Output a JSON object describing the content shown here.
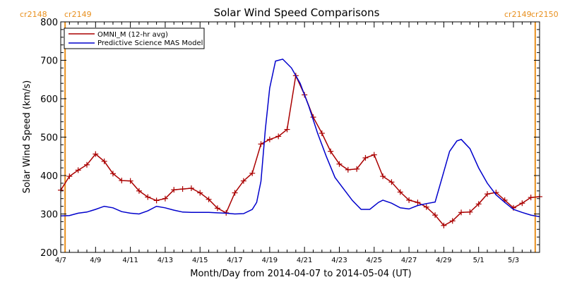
{
  "chart_data": {
    "type": "line",
    "title": "Solar Wind Speed Comparisons",
    "xlabel": "Month/Day from 2014-04-07 to 2014-05-04 (UT)",
    "ylabel": "Solar Wind Speed (km/s)",
    "xlim": [
      "2014-04-07",
      "2014-05-04T12:00"
    ],
    "ylim": [
      200,
      800
    ],
    "x_ticks": [
      "4/7",
      "4/9",
      "4/11",
      "4/13",
      "4/15",
      "4/17",
      "4/19",
      "4/21",
      "4/23",
      "4/25",
      "4/27",
      "4/29",
      "5/1",
      "5/3"
    ],
    "y_ticks": [
      200,
      300,
      400,
      500,
      600,
      700,
      800
    ],
    "legend_position": "top-left",
    "series": [
      {
        "name": "OMNI_M (12-hr avg)",
        "color": "#aa0000",
        "marker": "plus",
        "points": [
          [
            "2014-04-07T00:00",
            362
          ],
          [
            "2014-04-07T12:00",
            398
          ],
          [
            "2014-04-08T00:00",
            414
          ],
          [
            "2014-04-08T12:00",
            428
          ],
          [
            "2014-04-09T00:00",
            456
          ],
          [
            "2014-04-09T12:00",
            437
          ],
          [
            "2014-04-10T00:00",
            405
          ],
          [
            "2014-04-10T12:00",
            387
          ],
          [
            "2014-04-11T00:00",
            386
          ],
          [
            "2014-04-11T12:00",
            360
          ],
          [
            "2014-04-12T00:00",
            344
          ],
          [
            "2014-04-12T12:00",
            335
          ],
          [
            "2014-04-13T00:00",
            340
          ],
          [
            "2014-04-13T12:00",
            363
          ],
          [
            "2014-04-14T00:00",
            365
          ],
          [
            "2014-04-14T12:00",
            367
          ],
          [
            "2014-04-15T00:00",
            355
          ],
          [
            "2014-04-15T12:00",
            338
          ],
          [
            "2014-04-16T00:00",
            315
          ],
          [
            "2014-04-16T12:00",
            303
          ],
          [
            "2014-04-17T00:00",
            355
          ],
          [
            "2014-04-17T12:00",
            386
          ],
          [
            "2014-04-18T00:00",
            406
          ],
          [
            "2014-04-18T12:00",
            482
          ],
          [
            "2014-04-19T00:00",
            494
          ],
          [
            "2014-04-19T12:00",
            502
          ],
          [
            "2014-04-20T00:00",
            520
          ],
          [
            "2014-04-20T12:00",
            660
          ],
          [
            "2014-04-21T00:00",
            610
          ],
          [
            "2014-04-21T12:00",
            552
          ],
          [
            "2014-04-22T00:00",
            510
          ],
          [
            "2014-04-22T12:00",
            463
          ],
          [
            "2014-04-23T00:00",
            430
          ],
          [
            "2014-04-23T12:00",
            415
          ],
          [
            "2014-04-24T00:00",
            417
          ],
          [
            "2014-04-24T12:00",
            446
          ],
          [
            "2014-04-25T00:00",
            454
          ],
          [
            "2014-04-25T12:00",
            398
          ],
          [
            "2014-04-26T00:00",
            383
          ],
          [
            "2014-04-26T12:00",
            357
          ],
          [
            "2014-04-27T00:00",
            336
          ],
          [
            "2014-04-27T12:00",
            330
          ],
          [
            "2014-04-28T00:00",
            318
          ],
          [
            "2014-04-28T12:00",
            297
          ],
          [
            "2014-04-29T00:00",
            270
          ],
          [
            "2014-04-29T12:00",
            282
          ],
          [
            "2014-04-30T00:00",
            304
          ],
          [
            "2014-04-30T12:00",
            305
          ],
          [
            "2014-05-01T00:00",
            326
          ],
          [
            "2014-05-01T12:00",
            352
          ],
          [
            "2014-05-02T00:00",
            356
          ],
          [
            "2014-05-02T12:00",
            336
          ],
          [
            "2014-05-03T00:00",
            316
          ],
          [
            "2014-05-03T12:00",
            328
          ],
          [
            "2014-05-04T00:00",
            343
          ],
          [
            "2014-05-04T12:00",
            345
          ]
        ]
      },
      {
        "name": "Predictive Science MAS Model",
        "color": "#0000cc",
        "marker": "none",
        "points": [
          [
            "2014-04-07T00:00",
            295
          ],
          [
            "2014-04-07T12:00",
            296
          ],
          [
            "2014-04-08T00:00",
            302
          ],
          [
            "2014-04-08T12:00",
            305
          ],
          [
            "2014-04-09T00:00",
            312
          ],
          [
            "2014-04-09T12:00",
            320
          ],
          [
            "2014-04-10T00:00",
            316
          ],
          [
            "2014-04-10T12:00",
            306
          ],
          [
            "2014-04-11T00:00",
            302
          ],
          [
            "2014-04-11T12:00",
            300
          ],
          [
            "2014-04-12T00:00",
            308
          ],
          [
            "2014-04-12T12:00",
            320
          ],
          [
            "2014-04-13T00:00",
            316
          ],
          [
            "2014-04-13T12:00",
            310
          ],
          [
            "2014-04-14T00:00",
            305
          ],
          [
            "2014-04-14T12:00",
            304
          ],
          [
            "2014-04-15T00:00",
            304
          ],
          [
            "2014-04-15T12:00",
            304
          ],
          [
            "2014-04-16T00:00",
            303
          ],
          [
            "2014-04-16T12:00",
            302
          ],
          [
            "2014-04-17T00:00",
            300
          ],
          [
            "2014-04-17T12:00",
            301
          ],
          [
            "2014-04-18T00:00",
            312
          ],
          [
            "2014-04-18T06:00",
            330
          ],
          [
            "2014-04-18T12:00",
            385
          ],
          [
            "2014-04-18T18:00",
            520
          ],
          [
            "2014-04-19T00:00",
            628
          ],
          [
            "2014-04-19T08:00",
            698
          ],
          [
            "2014-04-19T18:00",
            703
          ],
          [
            "2014-04-20T06:00",
            680
          ],
          [
            "2014-04-20T18:00",
            640
          ],
          [
            "2014-04-21T06:00",
            580
          ],
          [
            "2014-04-21T18:00",
            510
          ],
          [
            "2014-04-22T06:00",
            450
          ],
          [
            "2014-04-22T18:00",
            395
          ],
          [
            "2014-04-23T06:00",
            365
          ],
          [
            "2014-04-23T18:00",
            335
          ],
          [
            "2014-04-24T06:00",
            312
          ],
          [
            "2014-04-24T18:00",
            312
          ],
          [
            "2014-04-25T06:00",
            330
          ],
          [
            "2014-04-25T12:00",
            336
          ],
          [
            "2014-04-26T00:00",
            328
          ],
          [
            "2014-04-26T12:00",
            316
          ],
          [
            "2014-04-27T00:00",
            313
          ],
          [
            "2014-04-27T12:00",
            322
          ],
          [
            "2014-04-28T00:00",
            327
          ],
          [
            "2014-04-28T12:00",
            331
          ],
          [
            "2014-04-29T00:00",
            410
          ],
          [
            "2014-04-29T08:00",
            463
          ],
          [
            "2014-04-29T18:00",
            490
          ],
          [
            "2014-04-30T00:00",
            494
          ],
          [
            "2014-04-30T12:00",
            470
          ],
          [
            "2014-05-01T00:00",
            420
          ],
          [
            "2014-05-01T12:00",
            380
          ],
          [
            "2014-05-02T00:00",
            350
          ],
          [
            "2014-05-02T12:00",
            330
          ],
          [
            "2014-05-03T00:00",
            312
          ],
          [
            "2014-05-03T12:00",
            304
          ],
          [
            "2014-05-04T00:00",
            297
          ],
          [
            "2014-05-04T12:00",
            293
          ]
        ]
      }
    ],
    "annotations": [
      {
        "text": "cr2148",
        "at": "2014-04-07",
        "side": "left",
        "color": "#e8901e"
      },
      {
        "text": "cr2149",
        "at": "2014-04-07",
        "side": "right",
        "color": "#e8901e"
      },
      {
        "text": "cr2149",
        "at": "2014-05-04T12:00",
        "side": "left",
        "color": "#e8901e"
      },
      {
        "text": "cr2150",
        "at": "2014-05-04T12:00",
        "side": "right",
        "color": "#e8901e"
      }
    ],
    "boundary_lines": [
      "2014-04-07T06:00",
      "2014-05-04T06:00"
    ],
    "boundary_color": "#e8901e"
  }
}
